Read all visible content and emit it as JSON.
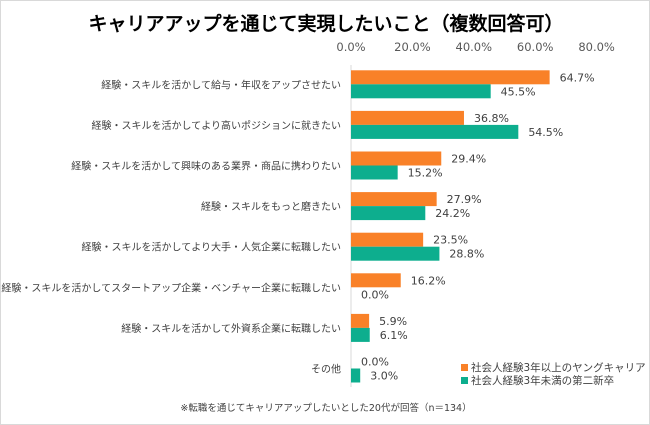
{
  "chart_data": {
    "type": "bar",
    "orientation": "horizontal",
    "title": "キャリアアップを通じて実現したいこと（複数回答可）",
    "categories": [
      "経験・スキルを活かして給与・年収をアップさせたい",
      "経験・スキルを活かしてより高いポジションに就きたい",
      "経験・スキルを活かして興味のある業界・商品に携わりたい",
      "経験・スキルをもっと磨きたい",
      "経験・スキルを活かしてより大手・人気企業に転職したい",
      "経験・スキルを活かしてスタートアップ企業・ベンチャー企業に転職したい",
      "経験・スキルを活かして外資系企業に転職したい",
      "その他"
    ],
    "series": [
      {
        "name": "社会人経験3年以上のヤングキャリア",
        "color": "#F98128",
        "values": [
          64.7,
          36.8,
          29.4,
          27.9,
          23.5,
          16.2,
          5.9,
          0.0
        ]
      },
      {
        "name": "社会人経験3年未満の第二新卒",
        "color": "#0DAE8E",
        "values": [
          45.5,
          54.5,
          15.2,
          24.2,
          28.8,
          0.0,
          6.1,
          3.0
        ]
      }
    ],
    "xlim": [
      0,
      80
    ],
    "xticks": [
      "0.0%",
      "20.0%",
      "40.0%",
      "60.0%",
      "80.0%"
    ],
    "xaxis_position": "top",
    "grid": false,
    "legend_placement": "bottom-right",
    "note": "※転職を通じてキャリアアップしたいとした20代が回答（n＝134）"
  }
}
